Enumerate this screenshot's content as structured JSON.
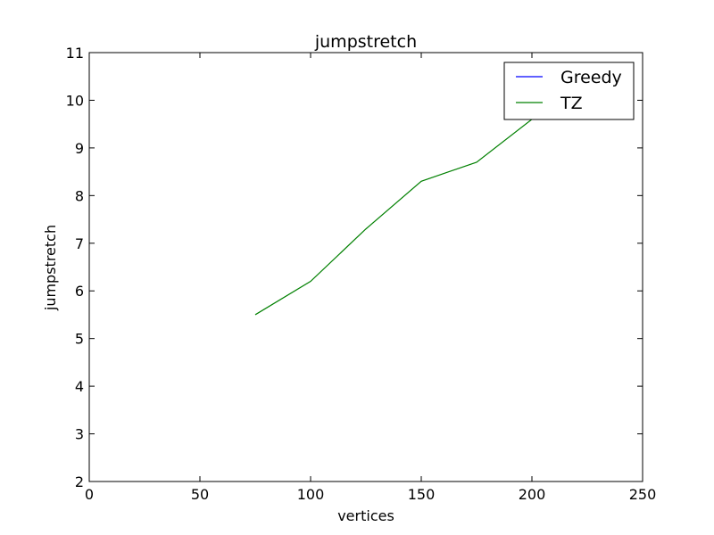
{
  "chart_data": {
    "type": "line",
    "title": "jumpstretch",
    "xlabel": "vertices",
    "ylabel": "jumpstretch",
    "xlim": [
      0,
      250
    ],
    "ylim": [
      2,
      11
    ],
    "xticks": [
      0,
      50,
      100,
      150,
      200,
      250
    ],
    "yticks": [
      2,
      3,
      4,
      5,
      6,
      7,
      8,
      9,
      10,
      11
    ],
    "grid": false,
    "legend_position": "top-right",
    "series": [
      {
        "name": "Greedy",
        "color": "#0000ff",
        "x": [],
        "y": []
      },
      {
        "name": "TZ",
        "color": "#008000",
        "x": [
          75,
          100,
          125,
          150,
          175,
          200,
          225
        ],
        "y": [
          5.5,
          6.2,
          7.3,
          8.3,
          8.7,
          9.6,
          10.1
        ]
      }
    ]
  }
}
